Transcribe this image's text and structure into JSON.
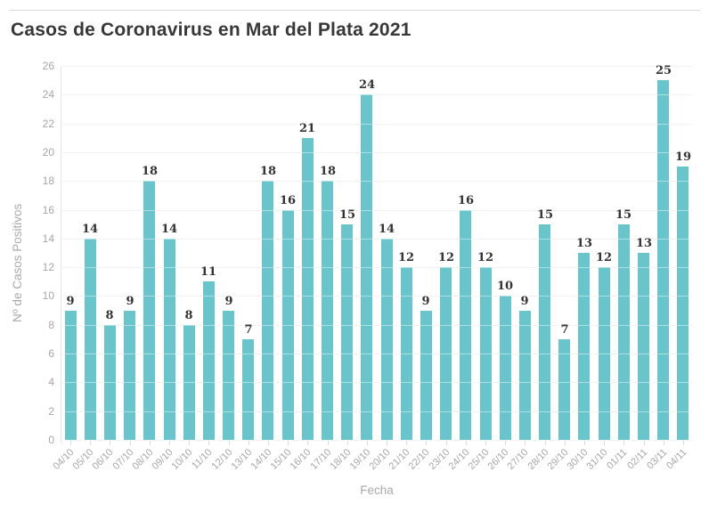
{
  "header": {
    "title": "Casos de Coronavirus en Mar del Plata 2021"
  },
  "chart_data": {
    "type": "bar",
    "title": "Casos de Coronavirus en Mar del Plata 2021",
    "xlabel": "Fecha",
    "ylabel": "Nº de Casos Positivos",
    "categories": [
      "04/10",
      "05/10",
      "06/10",
      "07/10",
      "08/10",
      "09/10",
      "10/10",
      "11/10",
      "12/10",
      "13/10",
      "14/10",
      "15/10",
      "16/10",
      "17/10",
      "18/10",
      "19/10",
      "20/10",
      "21/10",
      "22/10",
      "23/10",
      "24/10",
      "25/10",
      "26/10",
      "27/10",
      "28/10",
      "29/10",
      "30/10",
      "31/10",
      "01/11",
      "02/11",
      "03/11",
      "04/11"
    ],
    "values": [
      9,
      14,
      8,
      9,
      18,
      14,
      8,
      11,
      9,
      7,
      18,
      16,
      21,
      18,
      15,
      24,
      14,
      12,
      9,
      12,
      16,
      12,
      10,
      9,
      15,
      7,
      13,
      12,
      15,
      13,
      25,
      19
    ],
    "ylim": [
      0,
      26
    ],
    "yticks": [
      0,
      2,
      4,
      6,
      8,
      10,
      12,
      14,
      16,
      18,
      20,
      22,
      24,
      26
    ],
    "grid": true,
    "legend": "none",
    "bar_color": "#67c5cb",
    "value_label_color": "#333333",
    "axis_text_color": "#a6a6a6",
    "grid_color": "#ececec",
    "title_color": "#383838"
  }
}
